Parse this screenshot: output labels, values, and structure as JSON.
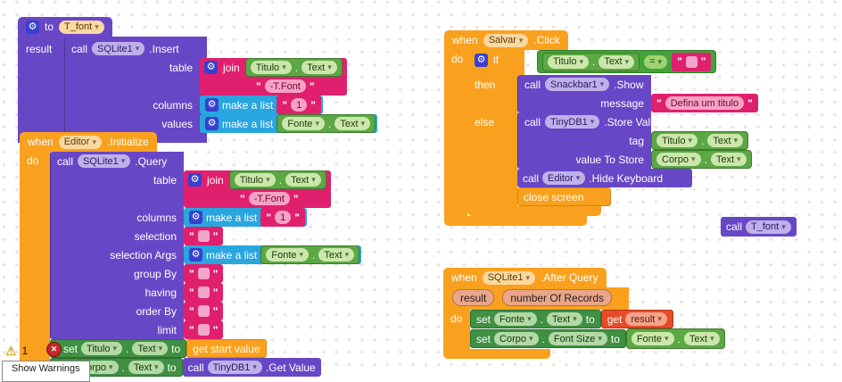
{
  "tokens": {
    "dot": "."
  },
  "workspace": {
    "warning_count": "1",
    "show_warnings_label": "Show Warnings"
  },
  "colors": {
    "event_orange": "#F9A11E",
    "procedure_purple": "#6847C6",
    "text_magenta": "#E0206E",
    "list_cyan": "#29A5DF",
    "getter_green": "#5CA844",
    "setter_green": "#3F9043",
    "variable_red": "#E74C27",
    "variable_amber": "#FBA01F",
    "grid_mark": "#d8d8d8"
  },
  "proc_tfont": {
    "kw_to": "to",
    "name": "T_font",
    "result_label": "result",
    "call_kw": "call",
    "component": "SQLite1",
    "method": ".Insert",
    "arg_table": "table",
    "arg_columns": "columns",
    "arg_values": "values",
    "join_kw": "join",
    "join_comp": "Titulo",
    "join_prop": "Text",
    "join_text": "-T.Font",
    "list_kw": "make a list",
    "columns_value": "1",
    "values_comp": "Fonte",
    "values_prop": "Text"
  },
  "editor_init": {
    "kw_when": "when",
    "component": "Editor",
    "event": ".Initialize",
    "kw_do": "do",
    "call_kw": "call",
    "sql_component": "SQLite1",
    "method": ".Query",
    "arg_table": "table",
    "arg_columns": "columns",
    "arg_selection": "selection",
    "arg_selection_args": "selection Args",
    "arg_group_by": "group By",
    "arg_having": "having",
    "arg_order_by": "order By",
    "arg_limit": "limit",
    "join_kw": "join",
    "join_comp": "Titulo",
    "join_prop": "Text",
    "join_text": "-T.Font",
    "list_kw": "make a list",
    "columns_value": "1",
    "selargs_comp": "Fonte",
    "selargs_prop": "Text",
    "set1": {
      "kw": "set",
      "comp": "Titulo",
      "prop": "Text",
      "to": "to",
      "value": "get start value"
    },
    "set2": {
      "kw": "set",
      "comp": "Corpo",
      "prop": "Text",
      "to": "to",
      "call_kw": "call",
      "component": "TinyDB1",
      "method": ".Get Value"
    }
  },
  "salvar_click": {
    "kw_when": "when",
    "component": "Salvar",
    "event": ".Click",
    "kw_do": "do",
    "kw_if": "if",
    "kw_then": "then",
    "kw_else": "else",
    "cond_comp": "Titulo",
    "cond_prop": "Text",
    "operator": "=",
    "snackbar": {
      "call_kw": "call",
      "component": "Snackbar1",
      "method": ".Show",
      "arg_message": "message",
      "text": "Defina um titulo"
    },
    "store": {
      "call_kw": "call",
      "component": "TinyDB1",
      "method": ".Store Value",
      "arg_tag": "tag",
      "arg_value": "value To Store",
      "tag_comp": "Titulo",
      "tag_prop": "Text",
      "val_comp": "Corpo",
      "val_prop": "Text"
    },
    "hide": {
      "call_kw": "call",
      "component": "Editor",
      "method": ".Hide Keyboard"
    },
    "close_label": "close screen"
  },
  "after_query": {
    "kw_when": "when",
    "component": "SQLite1",
    "event": ".After Query",
    "kw_do": "do",
    "param_result": "result",
    "param_records": "number Of Records",
    "set_fonte": {
      "kw": "set",
      "comp": "Fonte",
      "prop": "Text",
      "to": "to",
      "get_kw": "get",
      "var": "result"
    },
    "set_corpo": {
      "kw": "set",
      "comp": "Corpo",
      "prop": "Font Size",
      "to": "to",
      "val_comp": "Fonte",
      "val_prop": "Text"
    }
  },
  "call_tfont": {
    "call_kw": "call",
    "name": "T_font"
  }
}
